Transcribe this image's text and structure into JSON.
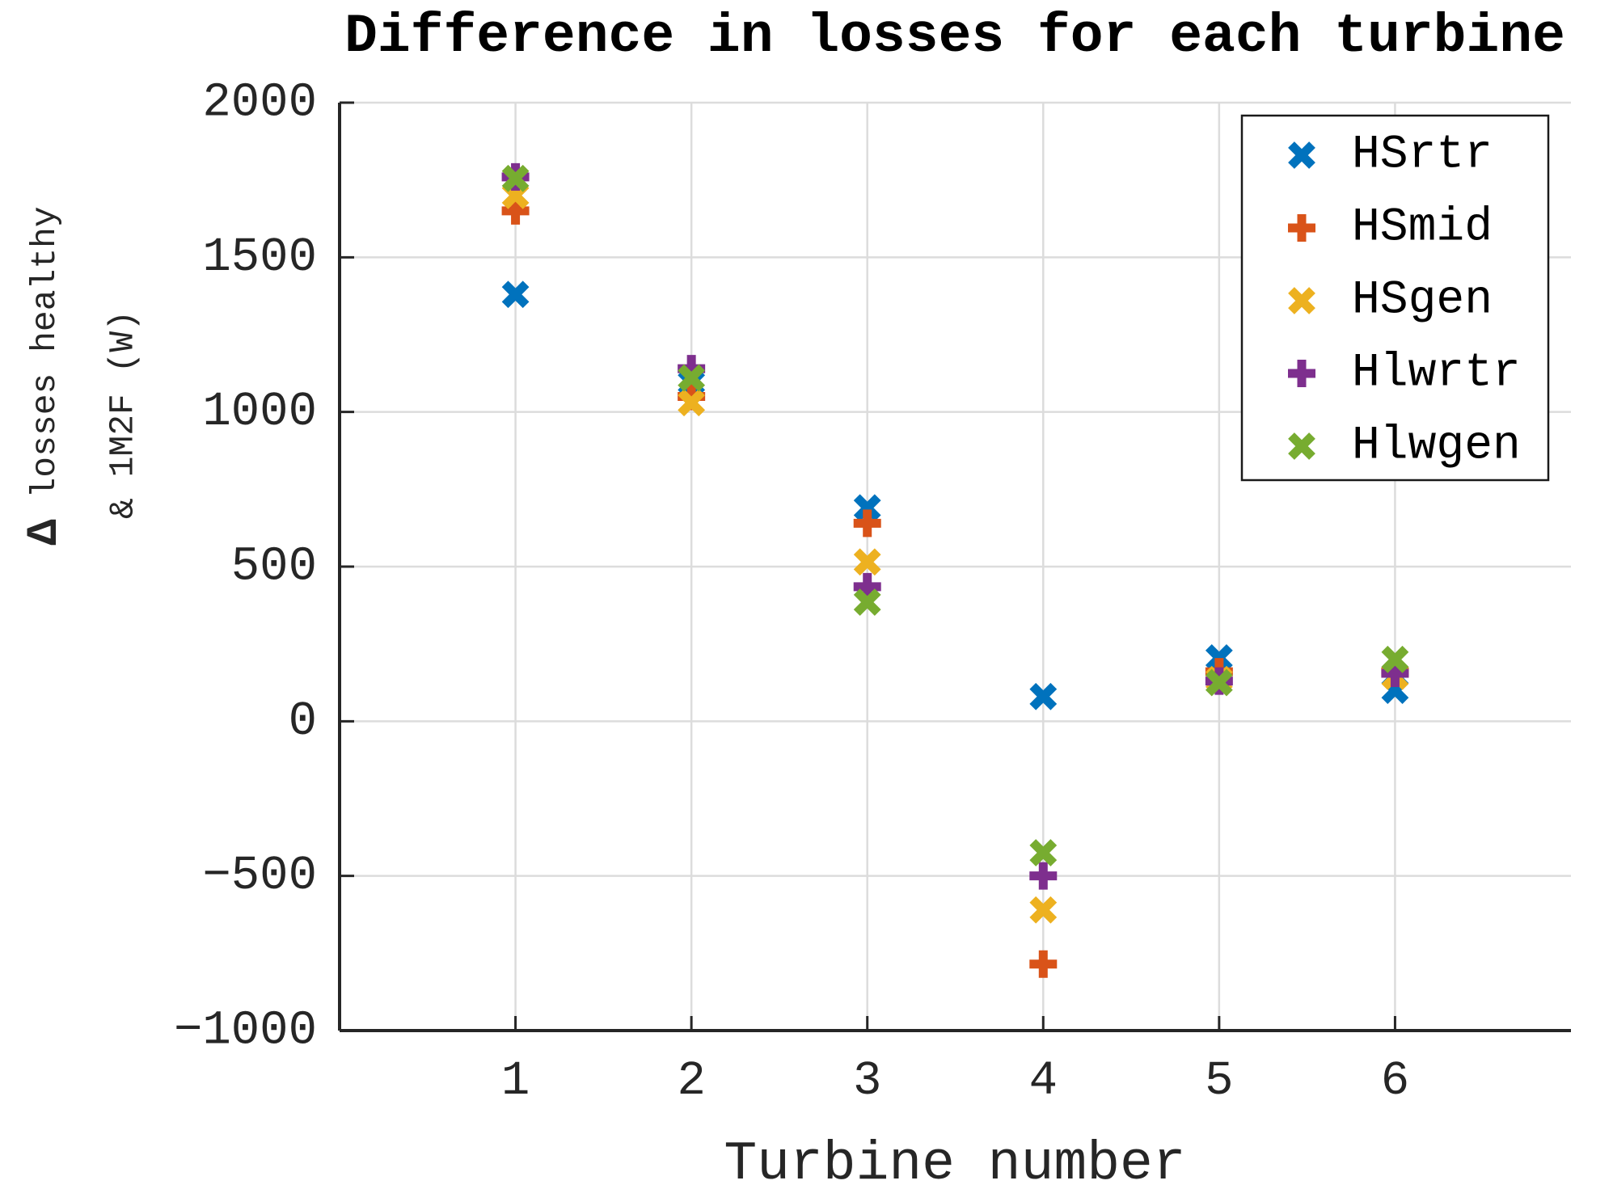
{
  "chart_data": {
    "type": "scatter",
    "title": "Difference in losses for each turbine",
    "xlabel": "Turbine number",
    "ylabel_lines": [
      "Δ losses healthy",
      "& 1M2F (W)"
    ],
    "x": [
      1,
      2,
      3,
      4,
      5,
      6
    ],
    "xticks": [
      "1",
      "2",
      "3",
      "4",
      "5",
      "6"
    ],
    "yticks": {
      "values": [
        2000,
        1500,
        1000,
        500,
        0,
        -500,
        -1000
      ],
      "labels": [
        "2000",
        "1500",
        "1000",
        "500",
        "0",
        "−500",
        "−1000"
      ]
    },
    "xlim": [
      0,
      7
    ],
    "ylim": [
      -1000,
      2000
    ],
    "grid": true,
    "legend_position": "northeast",
    "series": [
      {
        "name": "HSrtr",
        "marker": "x",
        "color": "#0072BD",
        "values": [
          1380,
          1095,
          690,
          80,
          205,
          100
        ]
      },
      {
        "name": "HSmid",
        "marker": "plus",
        "color": "#D95319",
        "values": [
          1650,
          1050,
          640,
          -785,
          160,
          160
        ]
      },
      {
        "name": "HSgen",
        "marker": "x",
        "color": "#EDB120",
        "values": [
          1700,
          1030,
          515,
          -610,
          135,
          145
        ]
      },
      {
        "name": "Hlwrtr",
        "marker": "plus",
        "color": "#7E2F8E",
        "values": [
          1760,
          1140,
          435,
          -500,
          130,
          155
        ]
      },
      {
        "name": "Hlwgen",
        "marker": "x",
        "color": "#77AC30",
        "values": [
          1755,
          1110,
          385,
          -425,
          125,
          200
        ]
      }
    ],
    "colors": {
      "axis": "#262626",
      "tick_label": "#262626",
      "grid": "#DCDCDC",
      "background": "#FFFFFF",
      "legend_border": "#1A1A1A"
    }
  }
}
